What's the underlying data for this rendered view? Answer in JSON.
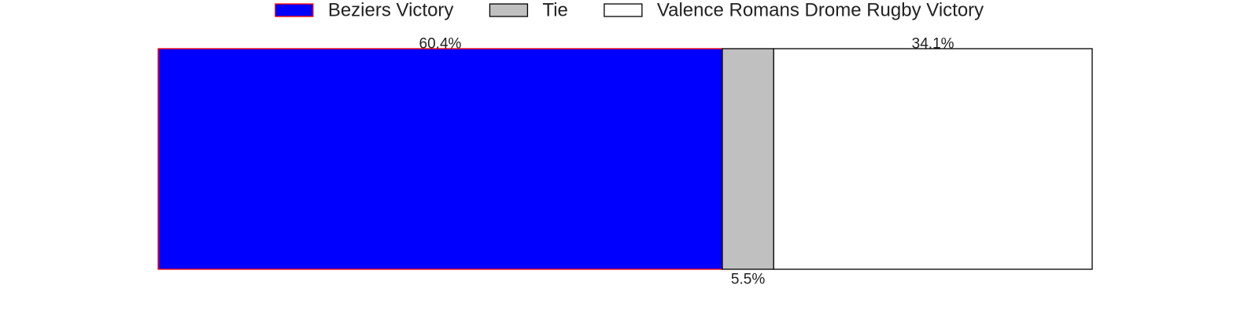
{
  "chart_data": {
    "type": "bar",
    "orientation": "horizontal-stacked",
    "series": [
      {
        "name": "Beziers Victory",
        "value": 60.4,
        "label": "60.4%",
        "fill": "#0000ff",
        "stroke": "#ff0000",
        "label_position": "above"
      },
      {
        "name": "Tie",
        "value": 5.5,
        "label": "5.5%",
        "fill": "#c0c0c0",
        "stroke": "#000000",
        "label_position": "below"
      },
      {
        "name": "Valence Romans Drome Rugby Victory",
        "value": 34.1,
        "label": "34.1%",
        "fill": "#ffffff",
        "stroke": "#000000",
        "label_position": "above"
      }
    ],
    "xlim": [
      0,
      100
    ],
    "grid": false,
    "axes_visible": false,
    "legend_placement": "top-center"
  }
}
